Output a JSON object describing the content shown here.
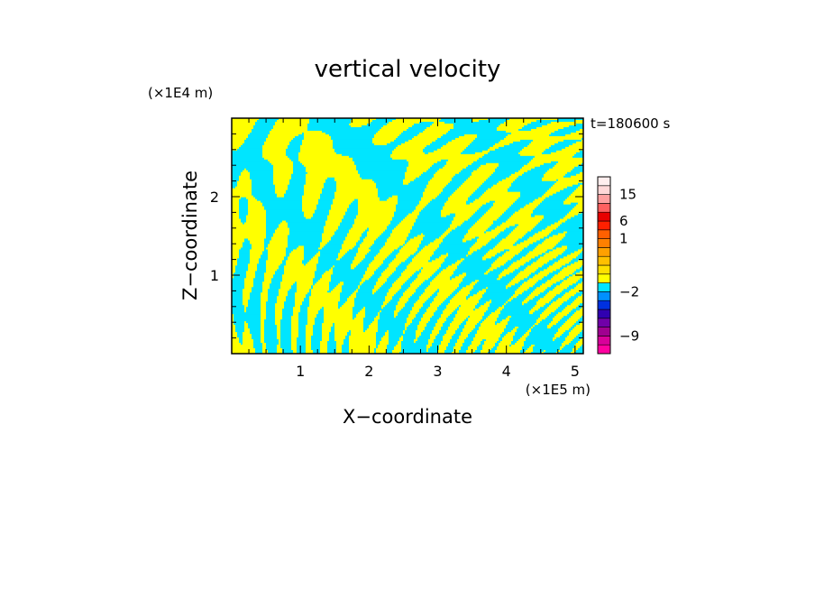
{
  "chart_data": {
    "type": "heatmap",
    "title": "vertical velocity",
    "xlabel": "X−coordinate",
    "ylabel": "Z−coordinate",
    "x_unit": "(×1E5 m)",
    "y_unit": "(×1E4 m)",
    "time_label": "t=180600 s",
    "xlim": [
      0.0,
      5.12
    ],
    "ylim": [
      0.0,
      3.0
    ],
    "x_ticks": [
      1,
      2,
      3,
      4,
      5
    ],
    "y_ticks": [
      1,
      2
    ],
    "x_tick_labels": [
      "1",
      "2",
      "3",
      "4",
      "5"
    ],
    "y_tick_labels": [
      "1",
      "2"
    ],
    "field_colors": {
      "positive": "#ffff00",
      "negative": "#00e5ff"
    },
    "colorbar": {
      "levels": [
        -12,
        -10.5,
        -9,
        -7.5,
        -6,
        -4.5,
        -3,
        -2,
        -1,
        0,
        0.25,
        0.5,
        0.75,
        1,
        3,
        6,
        9,
        12,
        15,
        18,
        21
      ],
      "colors": [
        "#ff00a0",
        "#d8009a",
        "#a00090",
        "#7000a8",
        "#3000b0",
        "#0030e0",
        "#0090ff",
        "#00e5ff",
        "#ffff00",
        "#ffe000",
        "#ffc000",
        "#ffa000",
        "#ff8000",
        "#ff6000",
        "#ff2000",
        "#e80000",
        "#ff6060",
        "#ffa0a0",
        "#ffd8d8",
        "#ffeeee"
      ],
      "tick_labels": [
        "15",
        "6",
        "1",
        "−2",
        "−9"
      ],
      "tick_values": [
        15,
        6,
        1,
        -2,
        -9
      ]
    }
  }
}
